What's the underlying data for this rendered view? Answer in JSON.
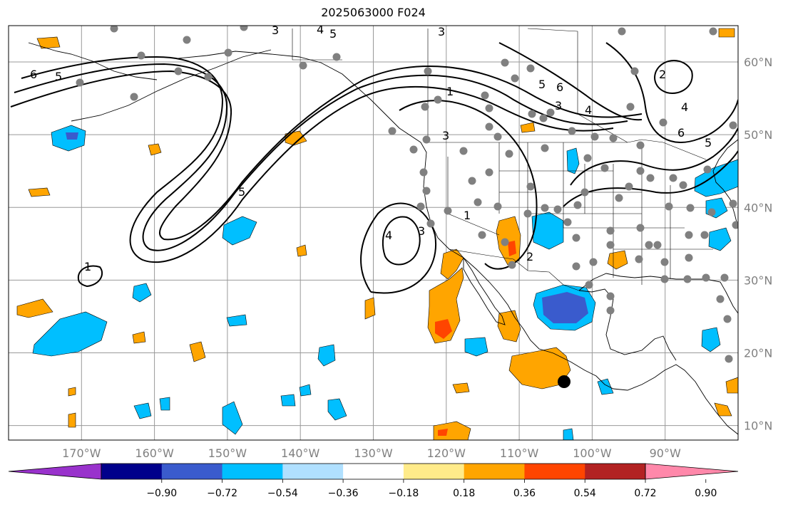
{
  "title": "2025063000 F024",
  "map": {
    "type": "map",
    "projection": "PlateCarree",
    "lon_range": [
      -180,
      -80
    ],
    "lat_range": [
      8,
      65
    ],
    "gridlines": true,
    "lon_ticks": [
      {
        "value": -170,
        "label": "170°W"
      },
      {
        "value": -160,
        "label": "160°W"
      },
      {
        "value": -150,
        "label": "150°W"
      },
      {
        "value": -140,
        "label": "140°W"
      },
      {
        "value": -130,
        "label": "130°W"
      },
      {
        "value": -120,
        "label": "120°W"
      },
      {
        "value": -110,
        "label": "110°W"
      },
      {
        "value": -100,
        "label": "100°W"
      },
      {
        "value": -90,
        "label": "90°W"
      }
    ],
    "lat_ticks": [
      {
        "value": 60,
        "label": "60°N"
      },
      {
        "value": 50,
        "label": "50°N"
      },
      {
        "value": 40,
        "label": "40°N"
      },
      {
        "value": 30,
        "label": "30°N"
      },
      {
        "value": 20,
        "label": "20°N"
      },
      {
        "value": 10,
        "label": "10°N"
      }
    ],
    "contour_labels": [
      "1",
      "2",
      "3",
      "4",
      "5",
      "6"
    ],
    "colors": {
      "land_line": "#000000",
      "grid": "#999999",
      "station_dot": "#808080",
      "marker": "#000000"
    }
  },
  "colorbar": {
    "extend": "both",
    "bins": [
      "#9932cc",
      "#00008b",
      "#3a5bcd",
      "#00bfff",
      "#b0e0ff",
      "#ffffff",
      "#ffeb8a",
      "#ffa500",
      "#ff4500",
      "#b22222",
      "#ff88aa"
    ],
    "ticks": [
      "−0.90",
      "−0.72",
      "−0.54",
      "−0.36",
      "−0.18",
      "0.18",
      "0.36",
      "0.54",
      "0.72",
      "0.90"
    ]
  }
}
